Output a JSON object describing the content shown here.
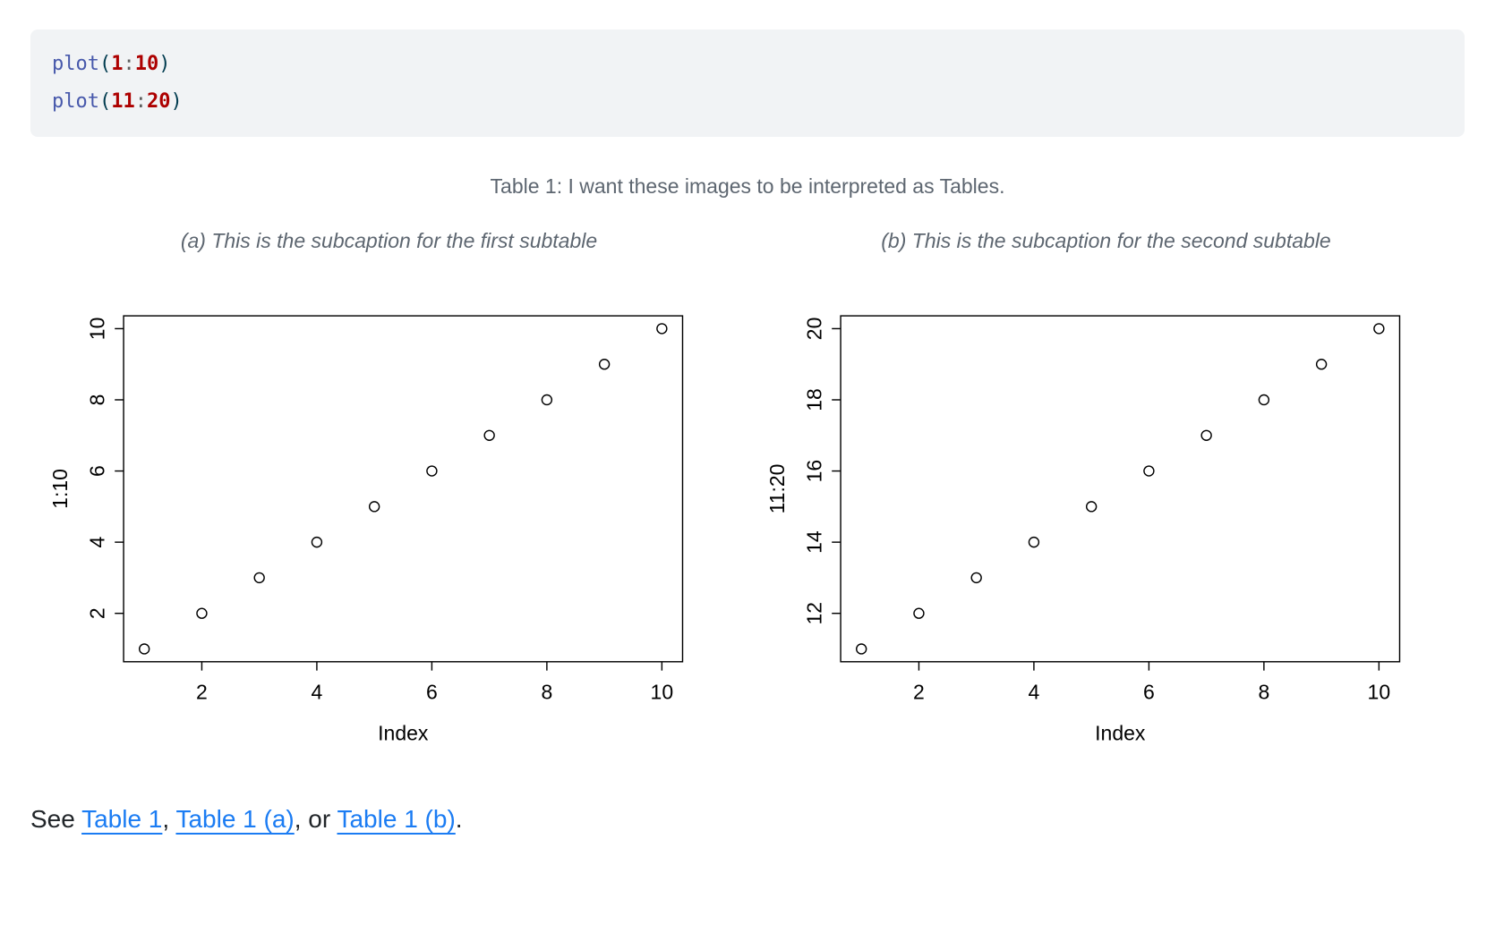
{
  "code_block": {
    "language": "r",
    "background": "#f1f3f5",
    "colors": {
      "function": "#4758AB",
      "normal": "#003B4F",
      "number": "#AD0000",
      "operator": "#5E5E5E"
    },
    "lines": [
      [
        {
          "t": "plot",
          "c": "fu"
        },
        {
          "t": "(",
          "c": "no"
        },
        {
          "t": "1",
          "c": "dv"
        },
        {
          "t": ":",
          "c": "op"
        },
        {
          "t": "10",
          "c": "dv"
        },
        {
          "t": ")",
          "c": "no"
        }
      ],
      [
        {
          "t": "plot",
          "c": "fu"
        },
        {
          "t": "(",
          "c": "no"
        },
        {
          "t": "11",
          "c": "dv"
        },
        {
          "t": ":",
          "c": "op"
        },
        {
          "t": "20",
          "c": "dv"
        },
        {
          "t": ")",
          "c": "no"
        }
      ]
    ]
  },
  "table": {
    "caption": "Table 1: I want these images to be interpreted as Tables.",
    "caption_color": "#5d6670",
    "subtables": [
      {
        "id": "a",
        "caption": "(a) This is the subcaption for the first subtable"
      },
      {
        "id": "b",
        "caption": "(b) This is the subcaption for the second subtable"
      }
    ]
  },
  "chart_data": [
    {
      "type": "scatter",
      "title": "",
      "x": [
        1,
        2,
        3,
        4,
        5,
        6,
        7,
        8,
        9,
        10
      ],
      "y": [
        1,
        2,
        3,
        4,
        5,
        6,
        7,
        8,
        9,
        10
      ],
      "xlabel": "Index",
      "ylabel": "1:10",
      "xticks": [
        2,
        4,
        6,
        8,
        10
      ],
      "yticks": [
        2,
        4,
        6,
        8,
        10
      ],
      "xlim": [
        0.64,
        10.36
      ],
      "ylim": [
        0.64,
        10.36
      ],
      "point_style": "open-circle",
      "box": true,
      "grid": false,
      "color": "#000000"
    },
    {
      "type": "scatter",
      "title": "",
      "x": [
        1,
        2,
        3,
        4,
        5,
        6,
        7,
        8,
        9,
        10
      ],
      "y": [
        11,
        12,
        13,
        14,
        15,
        16,
        17,
        18,
        19,
        20
      ],
      "xlabel": "Index",
      "ylabel": "11:20",
      "xticks": [
        2,
        4,
        6,
        8,
        10
      ],
      "yticks": [
        12,
        14,
        16,
        18,
        20
      ],
      "xlim": [
        0.64,
        10.36
      ],
      "ylim": [
        10.64,
        20.36
      ],
      "point_style": "open-circle",
      "box": true,
      "grid": false,
      "color": "#000000"
    }
  ],
  "footer": {
    "link_color": "#1b7cf3",
    "segments": [
      {
        "text": "See ",
        "link": false
      },
      {
        "text": "Table 1",
        "link": true,
        "name": "link-table-1"
      },
      {
        "text": ", ",
        "link": false
      },
      {
        "text": "Table 1 (a)",
        "link": true,
        "name": "link-table-1-a"
      },
      {
        "text": ", or ",
        "link": false
      },
      {
        "text": "Table 1 (b)",
        "link": true,
        "name": "link-table-1-b"
      },
      {
        "text": ".",
        "link": false
      }
    ]
  }
}
